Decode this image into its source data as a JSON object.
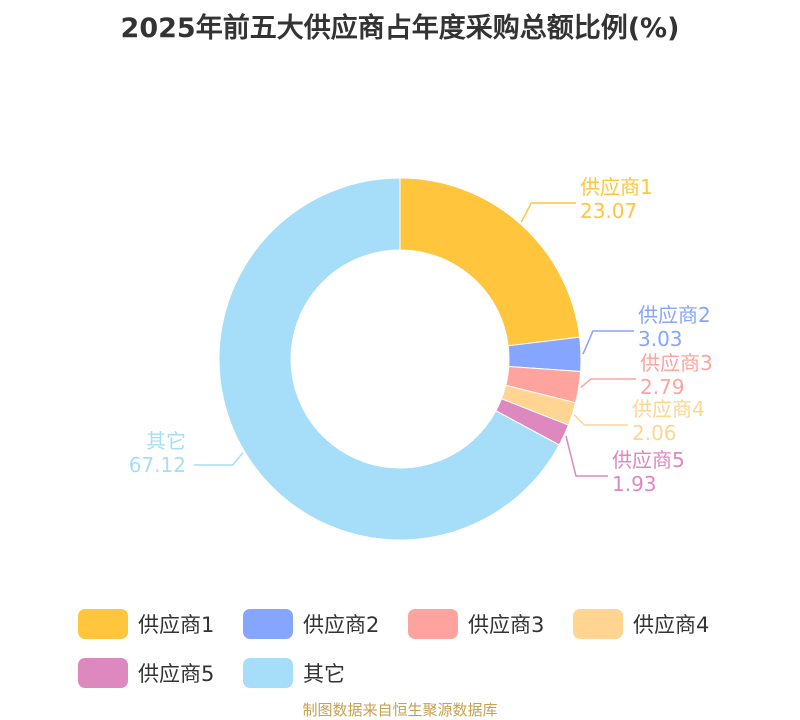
{
  "chart_data": {
    "type": "pie",
    "title": "2025年前五大供应商占年度采购总额比例(%)",
    "categories": [
      "供应商1",
      "供应商2",
      "供应商3",
      "供应商4",
      "供应商5",
      "其它"
    ],
    "values": [
      23.07,
      3.03,
      2.79,
      2.06,
      1.93,
      67.12
    ],
    "value_labels": [
      "23.07",
      "3.03",
      "2.79",
      "2.06",
      "1.93",
      "67.12"
    ],
    "colors": [
      "#FFC53D",
      "#85A5FF",
      "#FFA39E",
      "#FFD591",
      "#DE88C0",
      "#A6DEFA"
    ],
    "donut": true,
    "legend": "bottom"
  },
  "footer": {
    "source": "制图数据来自恒生聚源数据库"
  }
}
